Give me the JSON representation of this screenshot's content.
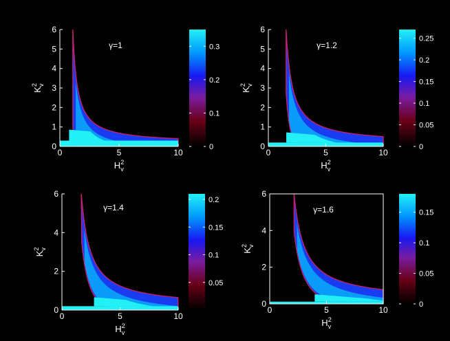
{
  "chart_data": [
    {
      "type": "heatmap",
      "title": "γ=1",
      "gamma": 1.0,
      "xlabel": "H_v^2",
      "ylabel": "K_v^2",
      "xlim": [
        0,
        10
      ],
      "ylim": [
        0,
        6
      ],
      "xticks": [
        0,
        5,
        10
      ],
      "yticks": [
        0,
        1,
        2,
        3,
        4,
        5,
        6
      ],
      "colorbar": {
        "min": 0,
        "max": 0.35,
        "ticks": [
          0,
          0.1,
          0.2,
          0.3
        ],
        "tick_labels": [
          "0",
          "0.1",
          "0.2",
          "0.3"
        ]
      }
    },
    {
      "type": "heatmap",
      "title": "γ=1.2",
      "gamma": 1.2,
      "xlabel": "H_v^2",
      "ylabel": "K_v^2",
      "xlim": [
        0,
        10
      ],
      "ylim": [
        0,
        6
      ],
      "xticks": [
        0,
        5,
        10
      ],
      "yticks": [
        0,
        1,
        2,
        3,
        4,
        5,
        6
      ],
      "colorbar": {
        "min": 0,
        "max": 0.27,
        "ticks": [
          0,
          0.05,
          0.1,
          0.15,
          0.2,
          0.25
        ],
        "tick_labels": [
          "0",
          "0.05",
          "0.1",
          "0.15",
          "0.2",
          "0.25"
        ]
      }
    },
    {
      "type": "heatmap",
      "title": "γ=1.4",
      "gamma": 1.4,
      "xlabel": "H_v^2",
      "ylabel": "K_v^2",
      "xlim": [
        0,
        10
      ],
      "ylim": [
        0,
        6
      ],
      "xticks": [
        0,
        5,
        10
      ],
      "yticks": [
        0,
        2,
        4,
        6
      ],
      "colorbar": {
        "min": 0,
        "max": 0.21,
        "ticks": [
          0.05,
          0.1,
          0.15,
          0.2
        ],
        "tick_labels": [
          "0.05",
          "0.1",
          "0.15",
          "0.2"
        ]
      }
    },
    {
      "type": "heatmap",
      "title": "γ=1.6",
      "gamma": 1.6,
      "xlabel": "H_v^2",
      "ylabel": "K_v^2",
      "xlim": [
        0,
        10
      ],
      "ylim": [
        0,
        6
      ],
      "xticks": [
        0,
        5,
        10
      ],
      "yticks": [
        0,
        2,
        4,
        6
      ],
      "colorbar": {
        "min": 0,
        "max": 0.18,
        "ticks": [
          0,
          0.05,
          0.1,
          0.15
        ],
        "tick_labels": [
          "0",
          "0.05",
          "0.1",
          "0.15"
        ]
      }
    }
  ]
}
